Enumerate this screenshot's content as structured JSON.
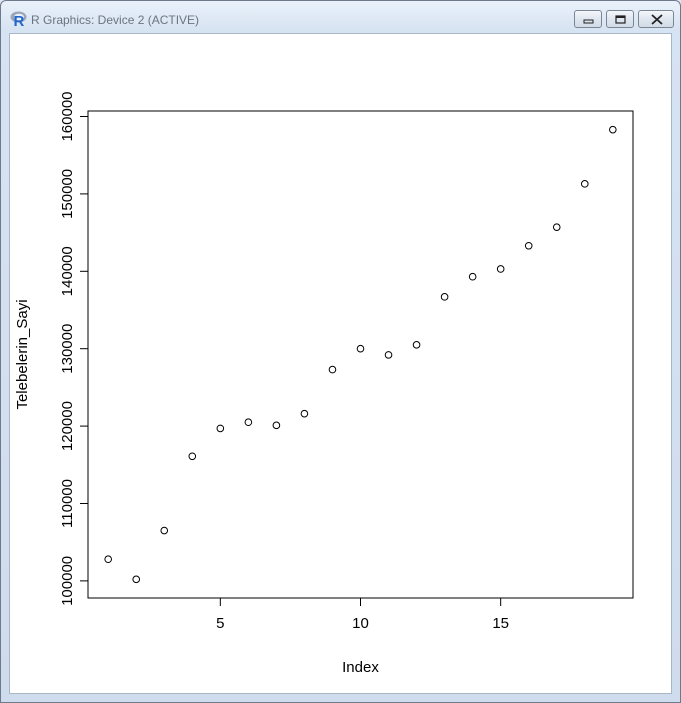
{
  "window": {
    "title": "R Graphics: Device 2 (ACTIVE)",
    "icon": "r-logo-icon",
    "controls": [
      "minimize-icon",
      "restore-icon",
      "close-icon"
    ]
  },
  "chart_data": {
    "type": "scatter",
    "title": "",
    "xlabel": "Index",
    "ylabel": "Telebelerin_Sayi",
    "x": [
      1,
      2,
      3,
      4,
      5,
      6,
      7,
      8,
      9,
      10,
      11,
      12,
      13,
      14,
      15,
      16,
      17,
      18,
      19
    ],
    "y": [
      102800,
      100200,
      106500,
      116100,
      119700,
      120500,
      120100,
      121600,
      127300,
      130000,
      129200,
      130500,
      136700,
      139300,
      140300,
      143300,
      145700,
      151300,
      158300
    ],
    "xlim": [
      0.28,
      19.72
    ],
    "ylim": [
      97788,
      160712
    ],
    "x_ticks": [
      5,
      10,
      15
    ],
    "y_ticks": [
      100000,
      110000,
      120000,
      130000,
      140000,
      150000,
      160000
    ],
    "x_tick_labels": [
      "5",
      "10",
      "15"
    ],
    "y_tick_labels": [
      "100000",
      "110000",
      "120000",
      "130000",
      "140000",
      "150000",
      "160000"
    ],
    "marker": "open-circle",
    "grid": false,
    "legend": "none"
  }
}
